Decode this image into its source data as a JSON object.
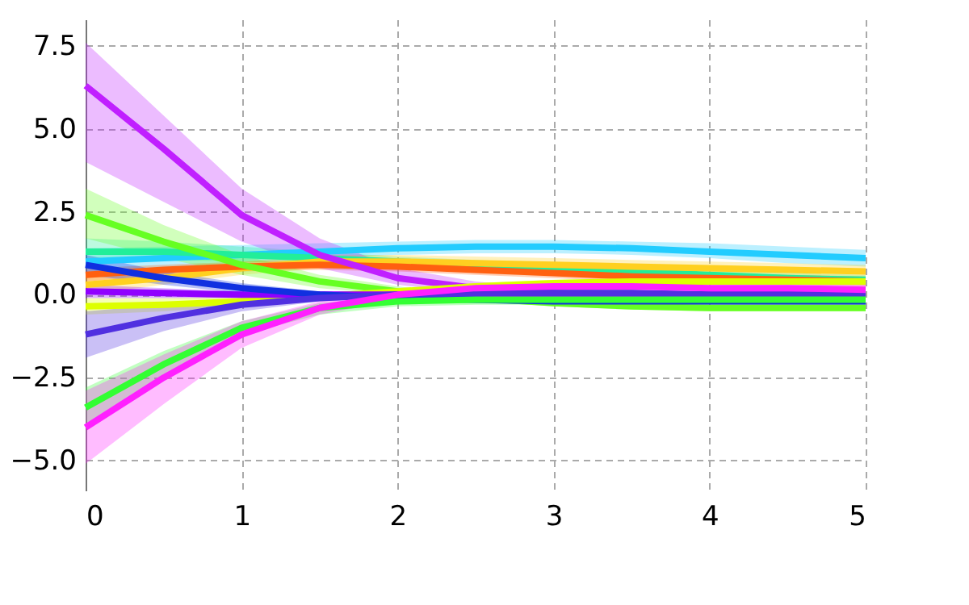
{
  "chart_data": {
    "type": "line",
    "x": [
      0,
      0.5,
      1,
      1.5,
      2,
      2.5,
      3,
      3.5,
      4,
      4.5,
      5
    ],
    "xlim": [
      0,
      5
    ],
    "xticks": [
      0,
      1,
      2,
      3,
      4,
      5
    ],
    "ylim": [
      -5.9,
      8.3
    ],
    "yticks": [
      {
        "value": -5,
        "label": "−5.0"
      },
      {
        "value": -2.5,
        "label": "−2.5"
      },
      {
        "value": 0,
        "label": "0.0"
      },
      {
        "value": 2.5,
        "label": "2.5"
      },
      {
        "value": 5,
        "label": "5.0"
      },
      {
        "value": 7.5,
        "label": "7.5"
      }
    ],
    "grid": true,
    "legend": false,
    "marker": "none",
    "line_style": "solid",
    "tick_labels": true,
    "series": [
      {
        "color": "#22ccff",
        "values": [
          1.0,
          1.1,
          1.2,
          1.3,
          1.4,
          1.45,
          1.45,
          1.4,
          1.3,
          1.2,
          1.1
        ],
        "lower": [
          0.6,
          0.8,
          0.95,
          1.1,
          1.2,
          1.25,
          1.25,
          1.2,
          1.1,
          0.95,
          0.85
        ],
        "upper": [
          1.4,
          1.45,
          1.5,
          1.55,
          1.6,
          1.65,
          1.65,
          1.6,
          1.55,
          1.45,
          1.35
        ]
      },
      {
        "color": "#22ee99",
        "values": [
          1.3,
          1.3,
          1.2,
          1.1,
          1.0,
          0.9,
          0.8,
          0.7,
          0.6,
          0.5,
          0.45
        ],
        "lower": [
          1.0,
          1.05,
          1.0,
          0.9,
          0.85,
          0.75,
          0.65,
          0.55,
          0.45,
          0.35,
          0.3
        ],
        "upper": [
          1.7,
          1.6,
          1.45,
          1.3,
          1.15,
          1.05,
          0.95,
          0.85,
          0.75,
          0.65,
          0.6
        ]
      },
      {
        "color": "#ffd020",
        "values": [
          0.3,
          0.5,
          0.8,
          1.0,
          1.0,
          0.95,
          0.9,
          0.85,
          0.8,
          0.75,
          0.7
        ],
        "lower": [
          0.0,
          0.3,
          0.6,
          0.8,
          0.8,
          0.75,
          0.7,
          0.65,
          0.6,
          0.55,
          0.5
        ],
        "upper": [
          0.6,
          0.7,
          1.0,
          1.2,
          1.2,
          1.15,
          1.1,
          1.05,
          1.0,
          0.95,
          0.9
        ]
      },
      {
        "color": "#ff6010",
        "values": [
          0.6,
          0.75,
          0.85,
          0.9,
          0.85,
          0.75,
          0.65,
          0.55,
          0.5,
          0.45,
          0.4
        ],
        "lower": [
          0.4,
          0.6,
          0.7,
          0.75,
          0.7,
          0.6,
          0.5,
          0.4,
          0.35,
          0.3,
          0.25
        ],
        "upper": [
          0.8,
          0.9,
          1.0,
          1.05,
          1.0,
          0.9,
          0.8,
          0.7,
          0.65,
          0.6,
          0.55
        ]
      },
      {
        "color": "#c020ff",
        "values": [
          6.3,
          4.4,
          2.4,
          1.2,
          0.5,
          0.2,
          0.05,
          -0.05,
          -0.1,
          -0.1,
          -0.1
        ],
        "lower": [
          4.0,
          2.8,
          1.6,
          0.8,
          0.3,
          0.05,
          -0.1,
          -0.2,
          -0.25,
          -0.25,
          -0.25
        ],
        "upper": [
          7.6,
          5.4,
          3.2,
          1.7,
          0.8,
          0.4,
          0.2,
          0.1,
          0.05,
          0.05,
          0.05
        ]
      },
      {
        "color": "#66ff22",
        "values": [
          2.4,
          1.6,
          0.9,
          0.4,
          0.1,
          -0.1,
          -0.25,
          -0.35,
          -0.4,
          -0.4,
          -0.4
        ],
        "lower": [
          1.7,
          1.1,
          0.6,
          0.2,
          0.0,
          -0.2,
          -0.35,
          -0.45,
          -0.5,
          -0.5,
          -0.5
        ],
        "upper": [
          3.2,
          2.1,
          1.2,
          0.6,
          0.25,
          0.0,
          -0.15,
          -0.25,
          -0.3,
          -0.3,
          -0.3
        ]
      },
      {
        "color": "#ddff00",
        "values": [
          -0.35,
          -0.3,
          -0.2,
          -0.05,
          0.1,
          0.25,
          0.35,
          0.4,
          0.4,
          0.4,
          0.4
        ],
        "lower": [
          -0.6,
          -0.5,
          -0.35,
          -0.15,
          0.0,
          0.15,
          0.25,
          0.3,
          0.3,
          0.3,
          0.3
        ],
        "upper": [
          -0.1,
          -0.1,
          -0.05,
          0.05,
          0.2,
          0.35,
          0.45,
          0.5,
          0.5,
          0.5,
          0.5
        ]
      },
      {
        "color": "#9000ff",
        "values": [
          0.1,
          0.05,
          0.0,
          0.0,
          0.0,
          0.0,
          0.0,
          0.0,
          0.0,
          0.0,
          0.0
        ],
        "lower": [
          -0.1,
          -0.1,
          -0.1,
          -0.1,
          -0.1,
          -0.1,
          -0.1,
          -0.1,
          -0.1,
          -0.1,
          -0.1
        ],
        "upper": [
          0.3,
          0.2,
          0.1,
          0.1,
          0.1,
          0.1,
          0.1,
          0.1,
          0.1,
          0.1,
          0.1
        ]
      },
      {
        "color": "#1030e0",
        "values": [
          0.9,
          0.5,
          0.2,
          0.0,
          -0.1,
          -0.15,
          -0.2,
          -0.2,
          -0.2,
          -0.2,
          -0.2
        ],
        "lower": [
          0.6,
          0.3,
          0.05,
          -0.1,
          -0.2,
          -0.25,
          -0.3,
          -0.3,
          -0.3,
          -0.3,
          -0.3
        ],
        "upper": [
          1.2,
          0.7,
          0.35,
          0.1,
          0.0,
          -0.05,
          -0.1,
          -0.1,
          -0.1,
          -0.1,
          -0.1
        ]
      },
      {
        "color": "#5030e0",
        "values": [
          -1.2,
          -0.7,
          -0.3,
          -0.1,
          0.0,
          0.05,
          0.05,
          0.05,
          0.0,
          0.0,
          0.0
        ],
        "lower": [
          -1.9,
          -1.1,
          -0.5,
          -0.2,
          -0.1,
          -0.05,
          -0.05,
          -0.05,
          -0.1,
          -0.1,
          -0.1
        ],
        "upper": [
          -0.5,
          -0.3,
          -0.1,
          0.0,
          0.1,
          0.15,
          0.15,
          0.15,
          0.1,
          0.1,
          0.1
        ]
      },
      {
        "color": "#33ff33",
        "values": [
          -3.4,
          -2.1,
          -1.0,
          -0.4,
          -0.2,
          -0.15,
          -0.15,
          -0.15,
          -0.15,
          -0.15,
          -0.15
        ],
        "lower": [
          -4.0,
          -2.5,
          -1.2,
          -0.6,
          -0.35,
          -0.3,
          -0.3,
          -0.3,
          -0.3,
          -0.3,
          -0.3
        ],
        "upper": [
          -2.8,
          -1.7,
          -0.8,
          -0.25,
          -0.05,
          0.0,
          0.0,
          0.0,
          0.0,
          0.0,
          0.0
        ]
      },
      {
        "color": "#ff20ff",
        "values": [
          -4.0,
          -2.5,
          -1.2,
          -0.4,
          0.0,
          0.2,
          0.25,
          0.25,
          0.2,
          0.2,
          0.15
        ],
        "lower": [
          -5.1,
          -3.3,
          -1.6,
          -0.6,
          -0.15,
          0.05,
          0.1,
          0.1,
          0.05,
          0.05,
          0.0
        ],
        "upper": [
          -2.9,
          -1.8,
          -0.8,
          -0.2,
          0.15,
          0.35,
          0.4,
          0.4,
          0.35,
          0.35,
          0.3
        ]
      }
    ]
  }
}
